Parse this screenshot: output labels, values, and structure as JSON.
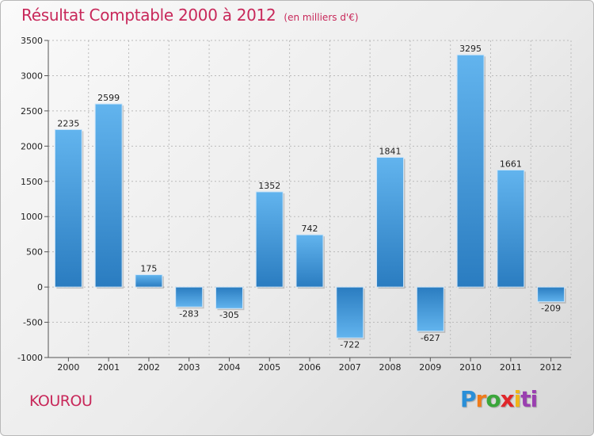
{
  "header": {
    "title": "Résultat Comptable 2000 à 2012",
    "unit": "(en milliers d'€)"
  },
  "location": "KOUROU",
  "brand": {
    "letters": [
      "P",
      "r",
      "o",
      "x",
      "i",
      "ti"
    ]
  },
  "colors": {
    "title": "#c8285a",
    "bar_light": "#62b4ee",
    "bar_dark": "#2a7cc0",
    "grid": "#bbbbbb"
  },
  "chart_data": {
    "type": "bar",
    "title": "Résultat Comptable 2000 à 2012",
    "subtitle": "(en milliers d'€)",
    "xlabel": "",
    "ylabel": "",
    "categories": [
      "2000",
      "2001",
      "2002",
      "2003",
      "2004",
      "2005",
      "2006",
      "2007",
      "2008",
      "2009",
      "2010",
      "2011",
      "2012"
    ],
    "values": [
      2235,
      2599,
      175,
      -283,
      -305,
      1352,
      742,
      -722,
      1841,
      -627,
      3295,
      1661,
      -209
    ],
    "ylim": [
      -1000,
      3500
    ],
    "yticks": [
      3500,
      3000,
      2500,
      2000,
      1500,
      1000,
      500,
      0,
      -500,
      -1000
    ],
    "grid": true
  }
}
